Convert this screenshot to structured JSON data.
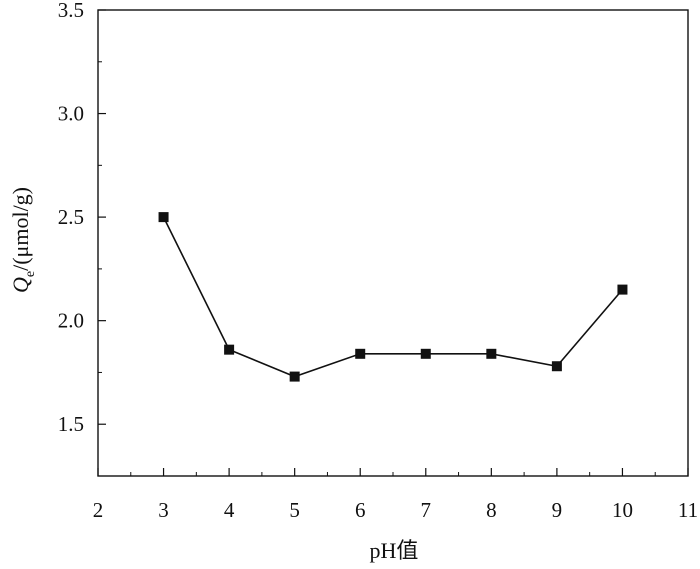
{
  "chart_data": {
    "type": "line",
    "title": "",
    "xlabel": "pH值",
    "ylabel": {
      "symbol": "Q",
      "subscript": "e",
      "unit": "/(μmol/g)"
    },
    "xlim": [
      2,
      11
    ],
    "ylim": [
      1.25,
      3.5
    ],
    "x_ticks": [
      "2",
      "3",
      "4",
      "5",
      "6",
      "7",
      "8",
      "9",
      "10",
      "11"
    ],
    "y_ticks": [
      "1.5",
      "2.0",
      "2.5",
      "3.0",
      "3.5"
    ],
    "series": [
      {
        "x": [
          3,
          4,
          5,
          6,
          7,
          8,
          9,
          10
        ],
        "values": [
          2.5,
          1.86,
          1.73,
          1.84,
          1.84,
          1.84,
          1.78,
          2.15
        ]
      }
    ],
    "marker": "square",
    "line_color": "#111111",
    "marker_color": "#111111",
    "grid": false,
    "legend": "none"
  }
}
